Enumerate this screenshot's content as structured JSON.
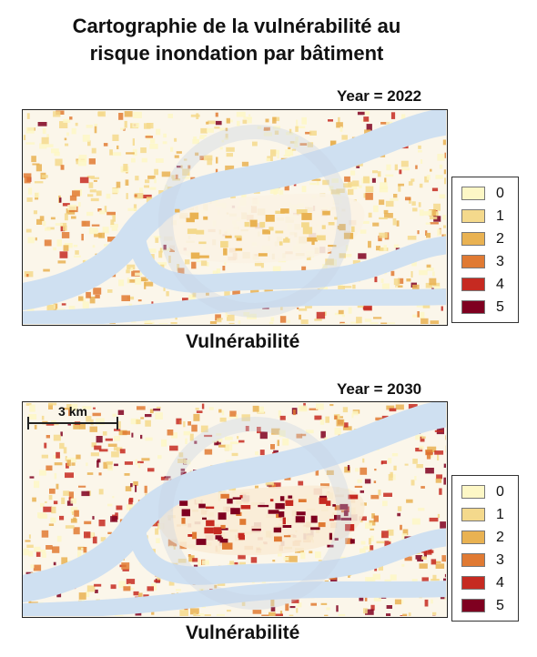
{
  "title": {
    "line1": "Cartographie de la vulnérabilité au",
    "line2": "risque inondation par bâtiment"
  },
  "panels": [
    {
      "year_label": "Year = 2022",
      "caption": "Vulnérabilité"
    },
    {
      "year_label": "Year = 2030",
      "caption": "Vulnérabilité",
      "scale_label": "3 km"
    }
  ],
  "legend": {
    "items": [
      {
        "label": "0",
        "color": "#fdf7c6"
      },
      {
        "label": "1",
        "color": "#f4d98c"
      },
      {
        "label": "2",
        "color": "#e9b252"
      },
      {
        "label": "3",
        "color": "#e07a33"
      },
      {
        "label": "4",
        "color": "#c62a21"
      },
      {
        "label": "5",
        "color": "#7f0020"
      }
    ]
  },
  "colors": {
    "river": "#cfe0f1",
    "land": "#fbf6ea",
    "watermark": "#c6d2e2"
  }
}
